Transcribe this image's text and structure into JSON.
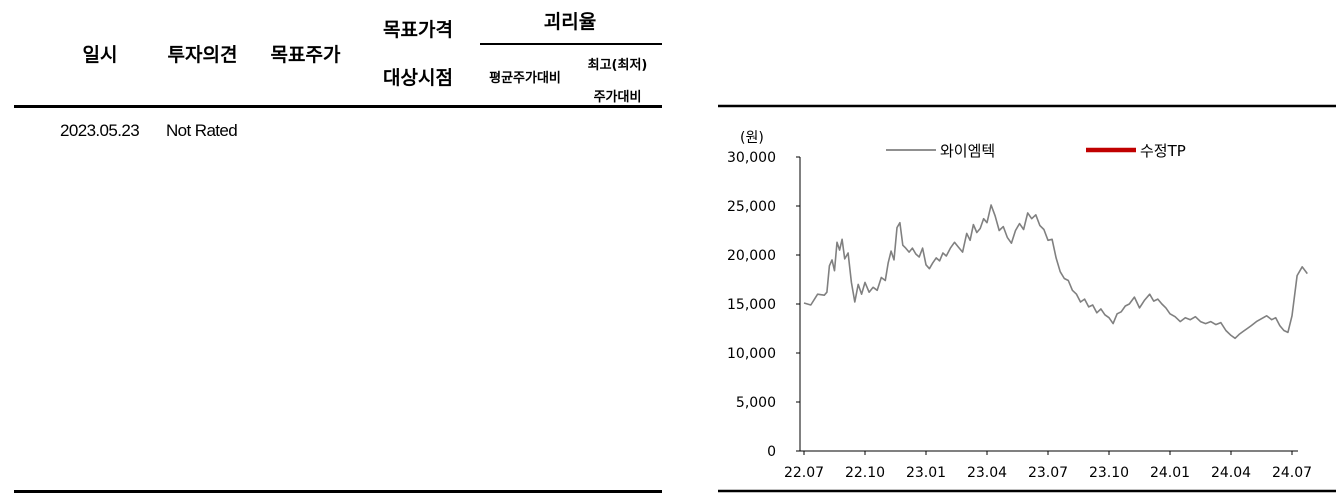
{
  "table": {
    "headers": {
      "date": "일시",
      "opinion": "투자의견",
      "target_price": "목표주가",
      "target_period_line1": "목표가격",
      "target_period_line2": "대상시점",
      "disparity": "괴리율",
      "avg_price": "평균주가대비",
      "high_low_line1": "최고(최저)",
      "high_low_line2": "주가대비"
    },
    "rows": [
      {
        "date": "2023.05.23",
        "opinion": "Not Rated",
        "target_price": "",
        "target_period": "",
        "avg_price": "",
        "high_low": ""
      }
    ]
  },
  "chart_data": {
    "type": "line",
    "ylabel": "(원)",
    "ylim": [
      0,
      30000
    ],
    "yticks": [
      "0",
      "5,000",
      "10,000",
      "15,000",
      "20,000",
      "25,000",
      "30,000"
    ],
    "xticks": [
      "22.07",
      "22.10",
      "23.01",
      "23.04",
      "23.07",
      "23.10",
      "24.01",
      "24.04",
      "24.07"
    ],
    "legend": "top",
    "series": [
      {
        "name": "와이엠텍",
        "color": "#808080",
        "points": [
          [
            "22.07",
            15100
          ],
          [
            "22.07",
            14900
          ],
          [
            "22.07",
            16000
          ],
          [
            "22.08",
            15900
          ],
          [
            "22.08",
            16200
          ],
          [
            "22.08",
            18900
          ],
          [
            "22.08",
            19500
          ],
          [
            "22.08",
            18400
          ],
          [
            "22.08",
            21300
          ],
          [
            "22.08",
            20500
          ],
          [
            "22.08",
            21600
          ],
          [
            "22.09",
            19600
          ],
          [
            "22.09",
            20200
          ],
          [
            "22.09",
            17200
          ],
          [
            "22.09",
            15200
          ],
          [
            "22.09",
            17000
          ],
          [
            "22.09",
            16000
          ],
          [
            "22.10",
            17200
          ],
          [
            "22.10",
            16200
          ],
          [
            "22.10",
            16700
          ],
          [
            "22.10",
            16400
          ],
          [
            "22.10",
            17700
          ],
          [
            "22.11",
            17400
          ],
          [
            "22.11",
            19200
          ],
          [
            "22.11",
            20400
          ],
          [
            "22.11",
            19500
          ],
          [
            "22.11",
            22800
          ],
          [
            "22.11",
            23300
          ],
          [
            "22.11",
            21000
          ],
          [
            "22.12",
            20700
          ],
          [
            "22.12",
            20300
          ],
          [
            "22.12",
            20700
          ],
          [
            "22.12",
            20100
          ],
          [
            "22.12",
            19800
          ],
          [
            "22.12",
            20700
          ],
          [
            "23.01",
            19000
          ],
          [
            "23.01",
            18600
          ],
          [
            "23.01",
            19200
          ],
          [
            "23.01",
            19700
          ],
          [
            "23.01",
            19400
          ],
          [
            "23.01",
            20200
          ],
          [
            "23.02",
            19900
          ],
          [
            "23.02",
            20700
          ],
          [
            "23.02",
            21300
          ],
          [
            "23.02",
            20800
          ],
          [
            "23.02",
            20300
          ],
          [
            "23.03",
            22200
          ],
          [
            "23.03",
            21500
          ],
          [
            "23.03",
            23100
          ],
          [
            "23.03",
            22300
          ],
          [
            "23.03",
            22700
          ],
          [
            "23.03",
            23700
          ],
          [
            "23.04",
            23300
          ],
          [
            "23.04",
            25100
          ],
          [
            "23.04",
            24000
          ],
          [
            "23.04",
            22500
          ],
          [
            "23.04",
            22900
          ],
          [
            "23.05",
            21800
          ],
          [
            "23.05",
            21200
          ],
          [
            "23.05",
            22500
          ],
          [
            "23.05",
            23200
          ],
          [
            "23.05",
            22600
          ],
          [
            "23.06",
            24300
          ],
          [
            "23.06",
            23700
          ],
          [
            "23.06",
            24100
          ],
          [
            "23.06",
            23000
          ],
          [
            "23.06",
            22600
          ],
          [
            "23.07",
            21500
          ],
          [
            "23.07",
            21600
          ],
          [
            "23.07",
            19700
          ],
          [
            "23.07",
            18300
          ],
          [
            "23.07",
            17600
          ],
          [
            "23.08",
            17400
          ],
          [
            "23.08",
            16400
          ],
          [
            "23.08",
            16000
          ],
          [
            "23.08",
            15200
          ],
          [
            "23.08",
            15500
          ],
          [
            "23.09",
            14700
          ],
          [
            "23.09",
            14900
          ],
          [
            "23.09",
            14100
          ],
          [
            "23.09",
            14500
          ],
          [
            "23.09",
            13900
          ],
          [
            "23.10",
            13600
          ],
          [
            "23.10",
            13000
          ],
          [
            "23.10",
            14000
          ],
          [
            "23.10",
            14200
          ],
          [
            "23.10",
            14800
          ],
          [
            "23.11",
            15000
          ],
          [
            "23.11",
            15700
          ],
          [
            "23.11",
            14600
          ],
          [
            "23.11",
            15400
          ],
          [
            "23.12",
            16000
          ],
          [
            "23.12",
            15300
          ],
          [
            "23.12",
            15500
          ],
          [
            "23.12",
            15000
          ],
          [
            "23.12",
            14600
          ],
          [
            "24.01",
            14000
          ],
          [
            "24.01",
            13700
          ],
          [
            "24.01",
            13200
          ],
          [
            "24.01",
            13600
          ],
          [
            "24.02",
            13400
          ],
          [
            "24.02",
            13700
          ],
          [
            "24.02",
            13200
          ],
          [
            "24.02",
            13000
          ],
          [
            "24.03",
            13200
          ],
          [
            "24.03",
            12900
          ],
          [
            "24.03",
            13100
          ],
          [
            "24.03",
            12300
          ],
          [
            "24.04",
            11800
          ],
          [
            "24.04",
            11500
          ],
          [
            "24.04",
            11900
          ],
          [
            "24.04",
            12200
          ],
          [
            "24.04",
            12500
          ],
          [
            "24.05",
            12800
          ],
          [
            "24.05",
            13200
          ],
          [
            "24.05",
            13500
          ],
          [
            "24.05",
            13800
          ],
          [
            "24.06",
            13400
          ],
          [
            "24.06",
            13600
          ],
          [
            "24.06",
            12800
          ],
          [
            "24.06",
            12300
          ],
          [
            "24.06",
            12100
          ],
          [
            "24.07",
            13800
          ],
          [
            "24.07",
            17900
          ],
          [
            "24.07",
            18800
          ],
          [
            "24.07",
            18100
          ]
        ]
      },
      {
        "name": "수정TP",
        "color": "#c00000",
        "points": []
      }
    ]
  }
}
